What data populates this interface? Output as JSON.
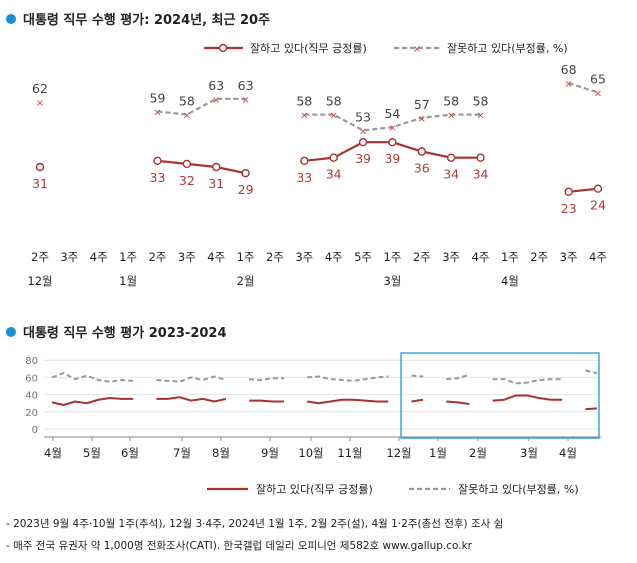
{
  "chart_data": [
    {
      "type": "line",
      "title": "대통령 직무 수행 평가: 2024년, 최근 20주",
      "legend": {
        "positive": "잘하고 있다(직무 긍정률)",
        "negative": "잘못하고 있다(부정률, %)"
      },
      "colors": {
        "positive": "#a83232",
        "negative": "#9a9a9a",
        "accent": "#1a8fd6"
      },
      "x_labels": [
        "2주",
        "3주",
        "4주",
        "1주",
        "2주",
        "3주",
        "4주",
        "1주",
        "2주",
        "3주",
        "4주",
        "5주",
        "1주",
        "2주",
        "3주",
        "4주",
        "1주",
        "2주",
        "3주",
        "4주"
      ],
      "month_labels": [
        {
          "index": 0,
          "label": "12월"
        },
        {
          "index": 3,
          "label": "1월"
        },
        {
          "index": 7,
          "label": "2월"
        },
        {
          "index": 12,
          "label": "3월"
        },
        {
          "index": 16,
          "label": "4월"
        }
      ],
      "series": [
        {
          "name": "잘하고 있다(직무 긍정률)",
          "values": [
            31,
            null,
            null,
            null,
            33,
            32,
            31,
            29,
            null,
            33,
            34,
            39,
            39,
            36,
            34,
            34,
            null,
            null,
            23,
            24
          ]
        },
        {
          "name": "잘못하고 있다(부정률, %)",
          "values": [
            62,
            null,
            null,
            null,
            59,
            58,
            63,
            63,
            null,
            58,
            58,
            53,
            54,
            57,
            58,
            58,
            null,
            null,
            68,
            65
          ]
        }
      ]
    },
    {
      "type": "line",
      "title": "대통령 직무 수행 평가 2023-2024",
      "legend": {
        "positive": "잘하고 있다(직무 긍정률)",
        "negative": "잘못하고 있다(부정률, %)"
      },
      "yticks": [
        0,
        20,
        40,
        60,
        80
      ],
      "ylim": [
        0,
        80
      ],
      "month_labels": [
        "4월",
        "5월",
        "6월",
        "7월",
        "8월",
        "9월",
        "10월",
        "11월",
        "12월",
        "1월",
        "2월",
        "3월",
        "4월"
      ],
      "series": [
        {
          "name": "잘하고 있다(직무 긍정률)",
          "values": [
            31,
            28,
            32,
            30,
            34,
            36,
            35,
            35,
            null,
            35,
            35,
            37,
            33,
            35,
            32,
            35,
            null,
            33,
            33,
            32,
            32,
            null,
            32,
            30,
            32,
            34,
            34,
            33,
            32,
            32,
            null,
            32,
            34,
            null,
            32,
            31,
            29,
            null,
            33,
            34,
            39,
            39,
            36,
            34,
            34,
            null,
            23,
            24
          ]
        },
        {
          "name": "잘못하고 있다(부정률, %)",
          "values": [
            60,
            65,
            58,
            62,
            57,
            55,
            57,
            56,
            null,
            57,
            56,
            55,
            60,
            57,
            61,
            57,
            null,
            58,
            57,
            59,
            59,
            null,
            60,
            61,
            58,
            57,
            56,
            58,
            60,
            61,
            null,
            62,
            61,
            null,
            58,
            59,
            63,
            null,
            58,
            58,
            53,
            54,
            57,
            58,
            58,
            null,
            68,
            65
          ]
        }
      ]
    }
  ],
  "footnotes": [
    "- 2023년 9월 4주·10월 1주(추석), 12월 3·4주, 2024년 1월 1주, 2월 2주(설), 4월 1·2주(총선 전후) 조사 쉼",
    "- 매주 전국 유권자 약 1,000명 전화조사(CATI). 한국갤럽 데일리 오피니언 제582호 www.gallup.co.kr"
  ]
}
